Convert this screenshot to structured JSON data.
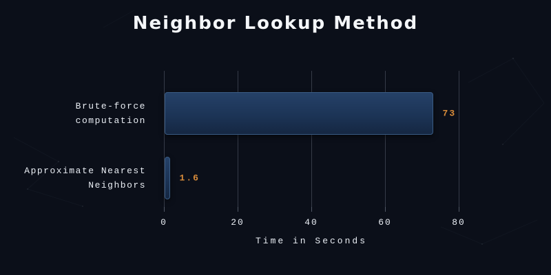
{
  "title": "Neighbor Lookup Method",
  "colors": {
    "background": "#0b0f19",
    "title_text": "#f4f6f9",
    "axis_text": "#e9edf3",
    "grid": "#8a93a3",
    "bar_fill_top": "#254168",
    "bar_fill_bottom": "#152742",
    "bar_border": "#3a5c84",
    "value_accent": "#d98c3a"
  },
  "chart_data": {
    "type": "bar",
    "orientation": "horizontal",
    "title": "Neighbor Lookup Method",
    "categories": [
      "Brute-force computation",
      "Approximate Nearest Neighbors"
    ],
    "category_lines": [
      [
        "Brute-force",
        "computation"
      ],
      [
        "Approximate Nearest",
        "Neighbors"
      ]
    ],
    "values": [
      73,
      1.6
    ],
    "value_labels": [
      "73",
      "1.6"
    ],
    "xlabel": "Time in Seconds",
    "ylabel": "",
    "xlim": [
      0,
      80
    ],
    "xticks": [
      0,
      20,
      40,
      60,
      80
    ],
    "grid": true,
    "legend": false
  }
}
